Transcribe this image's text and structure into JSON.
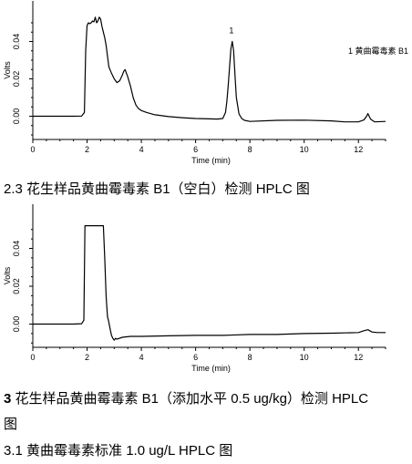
{
  "chart_data": [
    {
      "type": "line",
      "xlabel": "Time (min)",
      "ylabel": "Volts",
      "xlim": [
        0,
        13
      ],
      "ylim": [
        -0.012,
        0.052
      ],
      "xticks": [
        "0",
        "2",
        "4",
        "6",
        "8",
        "10",
        "12"
      ],
      "yticks": [
        "0.00",
        "0.02",
        "0.04"
      ],
      "grid": false,
      "legend": {
        "position": "top-right",
        "text": "1  黄曲霉毒素 B1"
      },
      "peak_labels": [
        {
          "x": 7.32,
          "y": 0.0445,
          "text": "1"
        }
      ],
      "series": [
        {
          "x": [
            0,
            1.5,
            1.8,
            1.9,
            1.95,
            2.0,
            2.05,
            2.1,
            2.15,
            2.2,
            2.25,
            2.3,
            2.35,
            2.4,
            2.45,
            2.5,
            2.55,
            2.6,
            2.65,
            2.7,
            2.8,
            2.9,
            3.0,
            3.1,
            3.2,
            3.3,
            3.35,
            3.4,
            3.5,
            3.6,
            3.7,
            3.8,
            3.9,
            4.0,
            4.2,
            4.5,
            5.0,
            5.5,
            6.0,
            6.5,
            6.8,
            7.0,
            7.1,
            7.15,
            7.2,
            7.25,
            7.3,
            7.35,
            7.4,
            7.45,
            7.5,
            7.6,
            7.7,
            7.8,
            8.0,
            9.0,
            10.0,
            11.0,
            11.5,
            12.0,
            12.2,
            12.3,
            12.35,
            12.45,
            12.6,
            13.0
          ],
          "y": [
            0.0,
            0.0,
            0.0001,
            0.002,
            0.035,
            0.0485,
            0.05,
            0.0495,
            0.05,
            0.051,
            0.0505,
            0.053,
            0.05,
            0.051,
            0.053,
            0.052,
            0.048,
            0.045,
            0.042,
            0.038,
            0.0265,
            0.023,
            0.02,
            0.018,
            0.019,
            0.022,
            0.024,
            0.025,
            0.021,
            0.016,
            0.01,
            0.006,
            0.004,
            0.003,
            0.002,
            0.0008,
            -0.0002,
            -0.0008,
            -0.0012,
            -0.0014,
            -0.0015,
            -0.0012,
            0.002,
            0.008,
            0.016,
            0.026,
            0.036,
            0.04,
            0.035,
            0.022,
            0.01,
            0.0012,
            -0.0012,
            -0.0022,
            -0.0028,
            -0.0022,
            -0.0021,
            -0.0025,
            -0.003,
            -0.003,
            -0.002,
            0.0,
            0.0014,
            -0.0016,
            -0.003,
            -0.0028
          ]
        }
      ]
    },
    {
      "type": "line",
      "xlabel": "Time (min)",
      "ylabel": "Volts",
      "xlim": [
        0,
        13
      ],
      "ylim": [
        -0.012,
        0.052
      ],
      "xticks": [
        "0",
        "2",
        "4",
        "6",
        "8",
        "10",
        "12"
      ],
      "yticks": [
        "0.00",
        "0.02",
        "0.04"
      ],
      "grid": false,
      "series": [
        {
          "x": [
            0,
            1.5,
            1.8,
            1.88,
            1.92,
            2.6,
            2.65,
            2.7,
            2.75,
            2.8,
            2.85,
            2.9,
            2.95,
            3.0,
            3.05,
            3.1,
            3.3,
            3.6,
            4.0,
            5.0,
            6.0,
            7.0,
            8.0,
            9.0,
            10.0,
            11.0,
            12.0,
            12.2,
            12.35,
            12.5,
            12.7,
            13.0
          ],
          "y": [
            0.0,
            0.0,
            0.0002,
            0.002,
            0.052,
            0.052,
            0.035,
            0.015,
            0.004,
            0.001,
            -0.0025,
            -0.006,
            -0.0075,
            -0.0085,
            -0.0075,
            -0.008,
            -0.007,
            -0.0065,
            -0.0065,
            -0.0062,
            -0.006,
            -0.006,
            -0.0055,
            -0.0055,
            -0.005,
            -0.0048,
            -0.0045,
            -0.0035,
            -0.003,
            -0.0042,
            -0.0045,
            -0.0045
          ]
        }
      ]
    }
  ],
  "captions": {
    "cap1": "2.3 花生样品黄曲霉毒素 B1（空白）检测 HPLC 图",
    "cap2_num": "3",
    "cap2_text": " 花生样品黄曲霉毒素 B1（添加水平 0.5  ug/kg）检测  HPLC",
    "cap2_wrap": "图",
    "cap3": "3.1 黄曲霉毒素标准 1.0 ug/L HPLC 图"
  }
}
